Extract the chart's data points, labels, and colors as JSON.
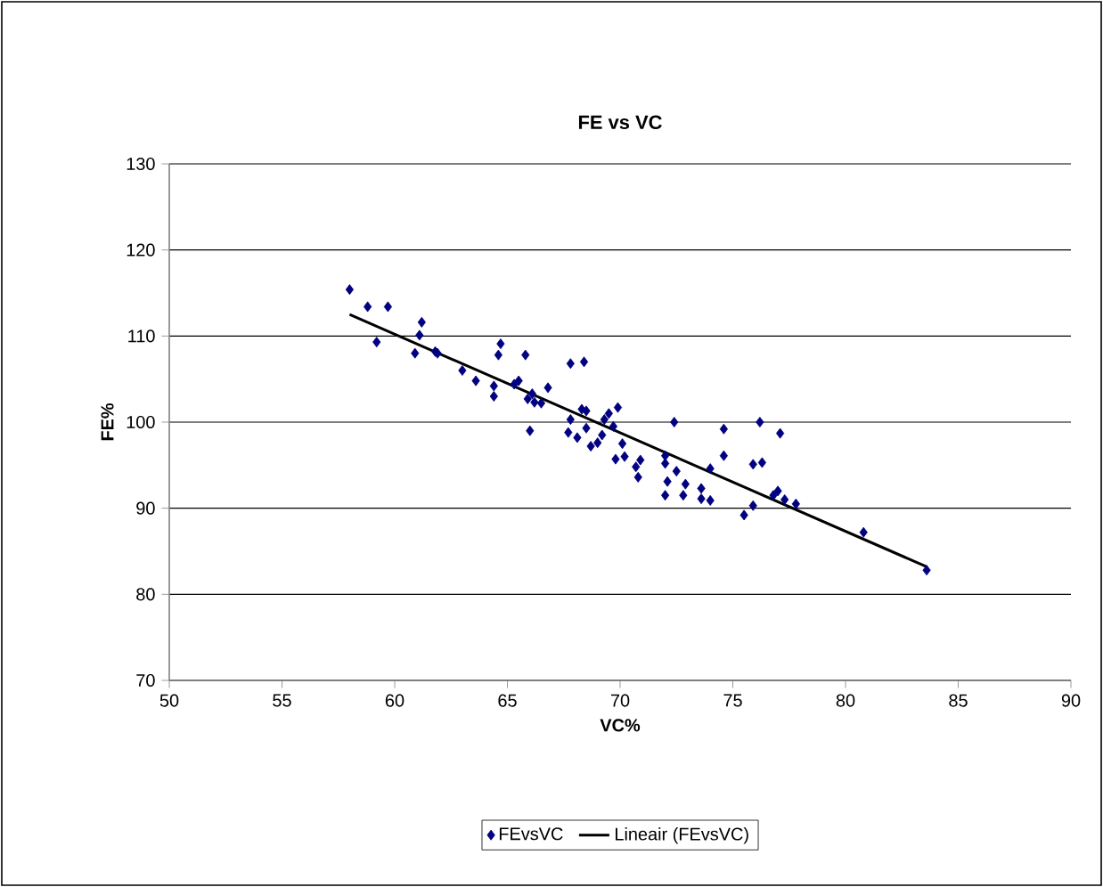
{
  "chart_data": {
    "type": "scatter",
    "title": "FE vs VC",
    "xlabel": "VC%",
    "ylabel": "FE%",
    "xlim": [
      50,
      90
    ],
    "xticks": [
      50,
      55,
      60,
      65,
      70,
      75,
      80,
      85,
      90
    ],
    "ylim": [
      70,
      130
    ],
    "yticks": [
      70,
      80,
      90,
      100,
      110,
      120,
      130
    ],
    "grid": "y",
    "legend": "bottom",
    "marker": "diamond",
    "series": [
      {
        "name": "FEvsVC",
        "color": "#000080",
        "x": [
          58.0,
          58.8,
          59.7,
          59.2,
          61.2,
          61.1,
          60.9,
          61.8,
          61.9,
          63.0,
          63.6,
          64.4,
          64.4,
          64.7,
          64.6,
          65.8,
          65.5,
          65.3,
          66.1,
          66.2,
          65.9,
          66.5,
          66.8,
          66.0,
          67.8,
          68.4,
          67.8,
          67.7,
          68.3,
          68.5,
          68.1,
          68.5,
          68.7,
          69.0,
          69.2,
          69.3,
          69.5,
          69.7,
          69.9,
          70.1,
          69.8,
          70.2,
          70.7,
          70.8,
          70.9,
          72.0,
          72.0,
          72.1,
          72.0,
          72.4,
          72.5,
          72.8,
          72.9,
          73.6,
          73.6,
          74.0,
          74.0,
          74.6,
          74.6,
          75.5,
          75.9,
          75.9,
          76.3,
          76.2,
          77.1,
          76.8,
          77.0,
          77.3,
          77.8,
          80.8,
          83.6
        ],
        "values": [
          115.4,
          113.4,
          113.4,
          109.3,
          111.6,
          110.1,
          108.0,
          108.2,
          108.0,
          106.0,
          104.8,
          104.2,
          103.0,
          109.1,
          107.8,
          107.8,
          104.8,
          104.4,
          103.3,
          102.3,
          102.7,
          102.2,
          104.0,
          99.0,
          106.8,
          107.0,
          100.3,
          98.8,
          101.5,
          101.3,
          98.2,
          99.3,
          97.2,
          97.6,
          98.5,
          100.3,
          101.0,
          99.5,
          101.7,
          97.5,
          95.7,
          96.0,
          94.8,
          93.6,
          95.6,
          96.1,
          95.2,
          93.1,
          91.5,
          100.0,
          94.3,
          91.5,
          92.8,
          92.3,
          91.1,
          90.9,
          94.6,
          99.2,
          96.1,
          89.2,
          90.3,
          95.1,
          95.3,
          100.0,
          98.7,
          91.5,
          92.0,
          91.0,
          90.5,
          87.2,
          82.8
        ]
      },
      {
        "name": "Lineair (FEvsVC)",
        "type": "line",
        "color": "#000000",
        "marker": "none",
        "line_style": "solid",
        "x": [
          58.0,
          83.6
        ],
        "values": [
          112.5,
          83.2
        ]
      }
    ]
  }
}
